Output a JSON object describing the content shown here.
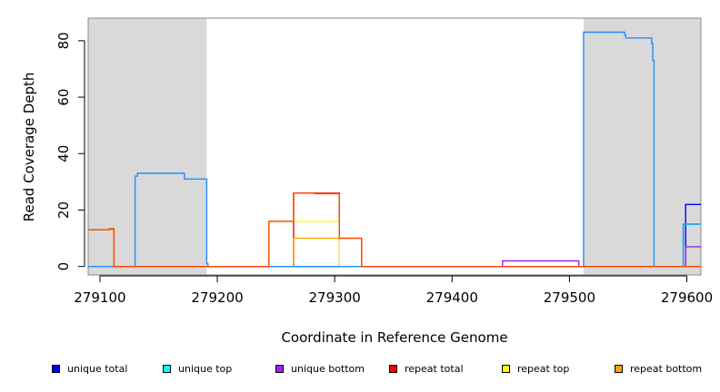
{
  "chart_data": {
    "type": "line",
    "xlabel": "Coordinate in Reference Genome",
    "ylabel": "Read Coverage Depth",
    "xlim": [
      279090,
      279612
    ],
    "ylim": [
      -3,
      88
    ],
    "x_ticks": [
      279100,
      279200,
      279300,
      279400,
      279500,
      279600
    ],
    "x_tick_labels": [
      "279100",
      "279200",
      "279300",
      "279400",
      "279500",
      "279600"
    ],
    "y_ticks": [
      0,
      20,
      40,
      60,
      80
    ],
    "y_tick_labels": [
      "0",
      "20",
      "40",
      "60",
      "80"
    ],
    "shaded_regions": [
      [
        279090,
        279191
      ],
      [
        279512,
        279612
      ]
    ],
    "shade_color": "#d9d9d9",
    "grid": false,
    "legend_position": "bottom",
    "series": [
      {
        "name": "unique total",
        "color": "#0000ff",
        "x": [
          279090,
          279594,
          279594,
          279599,
          279599,
          279612
        ],
        "y": [
          0,
          0,
          0,
          0,
          22,
          22
        ]
      },
      {
        "name": "unique top",
        "color": "#00ffff",
        "x": [
          279090,
          279597,
          279597,
          279612
        ],
        "y": [
          0,
          0,
          15,
          15
        ]
      },
      {
        "name": "unique bottom",
        "color": "#a020f0",
        "x": [
          279090,
          279443,
          279443,
          279508,
          279508,
          279599,
          279599,
          279612
        ],
        "y": [
          0,
          0,
          2,
          2,
          0,
          0,
          7,
          7
        ]
      },
      {
        "name": "repeat total",
        "color": "#ff0000",
        "x": [
          279090,
          279265,
          279265,
          279280,
          279280,
          279283,
          279283,
          279304,
          279304,
          279612
        ],
        "y": [
          0,
          0,
          26,
          26,
          26,
          26,
          26,
          26,
          0,
          0
        ]
      },
      {
        "name": "repeat top",
        "color": "#ffff00",
        "x": [
          279090,
          279244,
          279244,
          279265,
          279265,
          279283,
          279283,
          279304,
          279304,
          279612
        ],
        "y": [
          0,
          0,
          16,
          16,
          16,
          16,
          16,
          16,
          0,
          0
        ]
      },
      {
        "name": "repeat bottom",
        "color": "#ffa500",
        "x": [
          279090,
          279108,
          279108,
          279112,
          279112,
          279265,
          279265,
          279304,
          279304,
          279323,
          279323,
          279599,
          279599,
          279612
        ],
        "y": [
          13,
          13,
          13,
          13,
          0,
          0,
          10,
          10,
          10,
          10,
          0,
          0,
          0,
          0
        ]
      },
      {
        "name": "",
        "color": "#1e90ff",
        "x": [
          279090,
          279130,
          279130,
          279132,
          279132,
          279172,
          279172,
          279191,
          279191,
          279192,
          279192,
          279512,
          279512,
          279547,
          279547,
          279548,
          279548,
          279570,
          279570,
          279571,
          279571,
          279572,
          279572,
          279597,
          279597,
          279612
        ],
        "y": [
          0,
          0,
          32,
          32,
          33,
          33,
          31,
          31,
          1,
          1,
          0,
          0,
          83,
          83,
          82,
          82,
          81,
          81,
          79,
          79,
          73,
          73,
          0,
          0,
          15,
          15
        ]
      },
      {
        "name": "",
        "color": "#ff4500",
        "x": [
          279090,
          279108,
          279108,
          279112,
          279112,
          279244,
          279244,
          279265,
          279265,
          279283,
          279283,
          279304,
          279304,
          279323,
          279323,
          279612
        ],
        "y": [
          13,
          13,
          13.4,
          13.4,
          0,
          0,
          16,
          16,
          26,
          26,
          25.8,
          25.8,
          10,
          10,
          0,
          0
        ]
      }
    ]
  },
  "legend": {
    "items": [
      {
        "label": "unique total",
        "color": "#0000ff"
      },
      {
        "label": "unique top",
        "color": "#00ffff"
      },
      {
        "label": "unique bottom",
        "color": "#a020f0"
      },
      {
        "label": "repeat total",
        "color": "#ff0000"
      },
      {
        "label": "repeat top",
        "color": "#ffff00"
      },
      {
        "label": "repeat bottom",
        "color": "#ffa500"
      }
    ]
  }
}
